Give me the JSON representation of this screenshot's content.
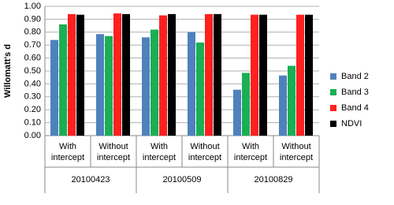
{
  "chart_data": {
    "type": "bar",
    "y_label": "Willomatt's d",
    "categories": [
      "With intercept",
      "Without intercept",
      "With intercept",
      "Without intercept",
      "With intercept",
      "Without intercept"
    ],
    "group_labels": [
      "20100423",
      "20100509",
      "20100829"
    ],
    "series": [
      {
        "name": "Band 2",
        "color": "#4f81bd",
        "values": [
          0.74,
          0.785,
          0.76,
          0.8,
          0.355,
          0.465
        ]
      },
      {
        "name": "Band 3",
        "color": "#1aaf54",
        "values": [
          0.86,
          0.77,
          0.82,
          0.72,
          0.485,
          0.54
        ]
      },
      {
        "name": "Band 4",
        "color": "#ff2020",
        "values": [
          0.94,
          0.945,
          0.93,
          0.94,
          0.935,
          0.935
        ]
      },
      {
        "name": "NDVI",
        "color": "#000000",
        "values": [
          0.935,
          0.94,
          0.94,
          0.94,
          0.935,
          0.935
        ]
      }
    ],
    "ylim": [
      0,
      1
    ],
    "yticks": [
      {
        "value": 0,
        "label": "0.00"
      },
      {
        "value": 0.1,
        "label": "0.10"
      },
      {
        "value": 0.2,
        "label": "0.20"
      },
      {
        "value": 0.3,
        "label": "0.30"
      },
      {
        "value": 0.4,
        "label": "0.40"
      },
      {
        "value": 0.5,
        "label": "0.50"
      },
      {
        "value": 0.6,
        "label": "0.60"
      },
      {
        "value": 0.7,
        "label": "0.70"
      },
      {
        "value": 0.8,
        "label": "0.80"
      },
      {
        "value": 0.9,
        "label": "0.90"
      },
      {
        "value": 1,
        "label": "1.00"
      }
    ],
    "grid": true
  }
}
